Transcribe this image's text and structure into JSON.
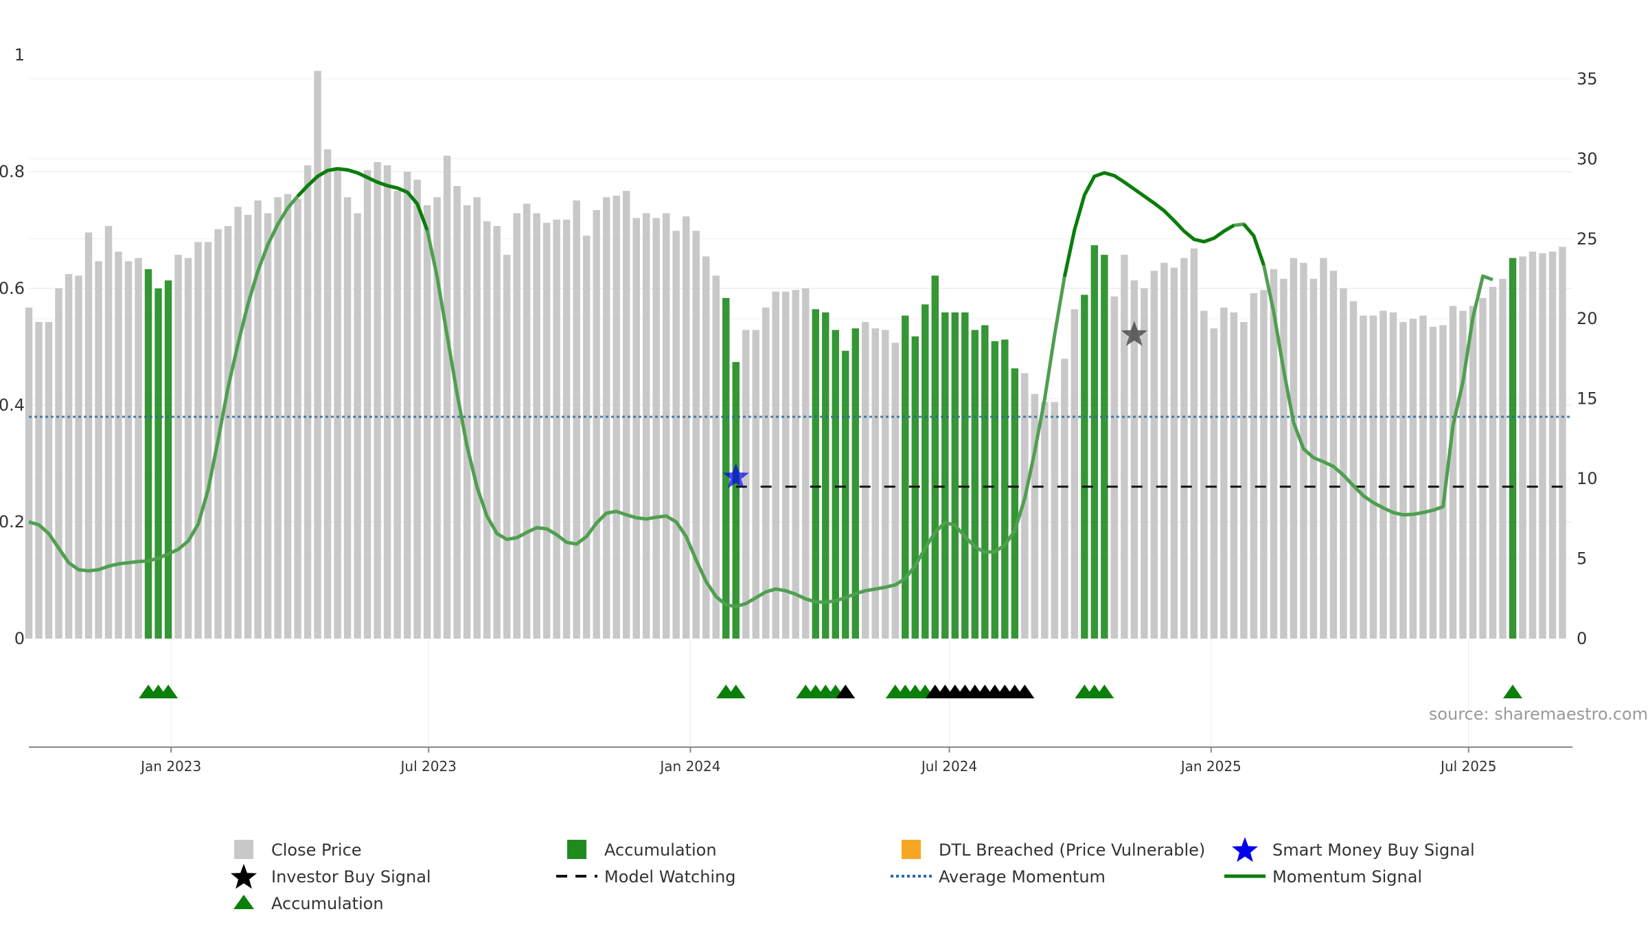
{
  "chart_data": {
    "type": "bar",
    "source": "source: sharemaestro.com",
    "colors": {
      "close_price": "#c8c8c8",
      "accumulation": "#1f8b1f",
      "momentum": "#0a7d0a",
      "average_momentum": "#2a6aa0",
      "model_watching": "#111111",
      "smart_money": "#0000ee",
      "investor_buy": "#444444",
      "dtl_breached": "#f5a623"
    },
    "left_axis": {
      "range": [
        0,
        1
      ],
      "ticks": [
        "0",
        "0.2",
        "0.4",
        "0.6",
        "0.8",
        "1"
      ]
    },
    "right_axis": {
      "range": [
        0,
        36
      ],
      "ticks": [
        "0",
        "5",
        "10",
        "15",
        "20",
        "25",
        "30",
        "35"
      ]
    },
    "x_axis": {
      "range": [
        "2022-09-23",
        "2025-09-12"
      ],
      "ticks": [
        {
          "date": "2023-01-01",
          "label": "Jan 2023"
        },
        {
          "date": "2023-07-01",
          "label": "Jul 2023"
        },
        {
          "date": "2024-01-01",
          "label": "Jan 2024"
        },
        {
          "date": "2024-07-01",
          "label": "Jul 2024"
        },
        {
          "date": "2025-01-01",
          "label": "Jan 2025"
        },
        {
          "date": "2025-07-01",
          "label": "Jul 2025"
        }
      ]
    },
    "legend": {
      "position": "bottom",
      "items": [
        {
          "key": "close_price",
          "label": "Close Price",
          "symbol": "square"
        },
        {
          "key": "accumulation",
          "label": "Accumulation",
          "symbol": "square"
        },
        {
          "key": "dtl_breached",
          "label": "DTL Breached (Price Vulnerable)",
          "symbol": "square"
        },
        {
          "key": "smart_money",
          "label": "Smart Money Buy Signal",
          "symbol": "star"
        },
        {
          "key": "investor_buy",
          "label": "Investor Buy Signal",
          "symbol": "star-black"
        },
        {
          "key": "model_watching",
          "label": "Model Watching",
          "symbol": "dash"
        },
        {
          "key": "average_momentum",
          "label": "Average Momentum",
          "symbol": "dot"
        },
        {
          "key": "momentum",
          "label": "Momentum Signal",
          "symbol": "line"
        },
        {
          "key": "accumulation_marker",
          "label": "Accumulation",
          "symbol": "triangle"
        }
      ]
    },
    "weeks": {
      "start": "2022-09-23",
      "step_days": 7,
      "close": [
        20.7,
        19.8,
        19.8,
        21.9,
        22.8,
        22.7,
        25.4,
        23.6,
        25.8,
        24.2,
        23.6,
        23.8,
        23.1,
        21.9,
        22.4,
        24.0,
        23.8,
        24.8,
        24.8,
        25.6,
        25.8,
        27.0,
        26.5,
        27.4,
        26.6,
        27.6,
        27.8,
        27.5,
        29.6,
        35.5,
        30.6,
        29.5,
        27.6,
        26.6,
        29.3,
        29.8,
        29.6,
        28.0,
        29.2,
        28.7,
        27.1,
        27.6,
        30.2,
        28.3,
        27.1,
        27.6,
        26.1,
        25.8,
        24.0,
        26.6,
        27.2,
        26.6,
        26.0,
        26.2,
        26.2,
        27.4,
        25.2,
        26.8,
        27.6,
        27.7,
        28.0,
        26.3,
        26.6,
        26.3,
        26.6,
        25.5,
        26.4,
        25.5,
        23.9,
        22.7,
        21.3,
        17.3,
        19.3,
        19.3,
        20.7,
        21.7,
        21.7,
        21.8,
        21.9,
        20.6,
        20.4,
        19.3,
        18.0,
        19.4,
        19.8,
        19.4,
        19.3,
        18.5,
        20.2,
        18.9,
        20.9,
        22.7,
        20.4,
        20.4,
        20.4,
        19.3,
        19.6,
        18.6,
        18.7,
        16.9,
        16.6,
        15.3,
        14.8,
        14.8,
        17.5,
        20.6,
        21.5,
        24.6,
        24.0,
        21.4,
        24.0,
        22.4,
        21.9,
        23.0,
        23.5,
        23.2,
        23.8,
        24.4,
        20.5,
        19.4,
        20.7,
        20.4,
        19.8,
        21.6,
        21.8,
        23.1,
        22.5,
        23.8,
        23.5,
        22.5,
        23.8,
        23.0,
        21.9,
        21.1,
        20.2,
        20.2,
        20.5,
        20.4,
        19.8,
        20.0,
        20.2,
        19.5,
        19.6,
        20.8,
        20.5,
        20.8,
        21.3,
        22.0,
        22.5,
        23.8,
        23.9,
        24.2,
        24.1,
        24.2,
        24.5
      ],
      "accumulation": [
        12,
        13,
        14,
        70,
        71,
        79,
        80,
        81,
        82,
        83,
        88,
        89,
        90,
        91,
        92,
        93,
        94,
        95,
        96,
        97,
        98,
        99,
        106,
        107,
        108,
        149
      ],
      "triangles_green": [
        12,
        13,
        14,
        70,
        71,
        78,
        79,
        80,
        81,
        87,
        88,
        89,
        90,
        106,
        107,
        108,
        149
      ],
      "triangles_black": [
        82,
        91,
        92,
        93,
        94,
        95,
        96,
        97,
        98,
        99,
        100
      ],
      "momentum": [
        0.2,
        0.195,
        0.18,
        0.155,
        0.13,
        0.118,
        0.116,
        0.118,
        0.124,
        0.128,
        0.13,
        0.132,
        0.133,
        0.138,
        0.145,
        0.153,
        0.167,
        0.196,
        0.255,
        0.34,
        0.43,
        0.505,
        0.573,
        0.63,
        0.675,
        0.71,
        0.738,
        0.758,
        0.776,
        0.792,
        0.802,
        0.805,
        0.803,
        0.798,
        0.79,
        0.782,
        0.776,
        0.772,
        0.765,
        0.745,
        0.7,
        0.62,
        0.52,
        0.42,
        0.33,
        0.26,
        0.21,
        0.18,
        0.17,
        0.173,
        0.182,
        0.19,
        0.188,
        0.178,
        0.165,
        0.162,
        0.175,
        0.198,
        0.215,
        0.218,
        0.212,
        0.207,
        0.205,
        0.208,
        0.21,
        0.2,
        0.175,
        0.135,
        0.098,
        0.072,
        0.058,
        0.055,
        0.06,
        0.07,
        0.08,
        0.085,
        0.082,
        0.076,
        0.068,
        0.063,
        0.062,
        0.065,
        0.07,
        0.077,
        0.082,
        0.085,
        0.088,
        0.092,
        0.103,
        0.125,
        0.155,
        0.182,
        0.199,
        0.194,
        0.175,
        0.157,
        0.148,
        0.149,
        0.16,
        0.185,
        0.24,
        0.32,
        0.41,
        0.52,
        0.62,
        0.7,
        0.76,
        0.792,
        0.798,
        0.793,
        0.782,
        0.77,
        0.758,
        0.746,
        0.733,
        0.716,
        0.698,
        0.684,
        0.68,
        0.686,
        0.698,
        0.708,
        0.71,
        0.69,
        0.64,
        0.56,
        0.46,
        0.37,
        0.325,
        0.31,
        0.303,
        0.295,
        0.28,
        0.262,
        0.245,
        0.233,
        0.224,
        0.216,
        0.212,
        0.213,
        0.216,
        0.22,
        0.226,
        0.365,
        0.44,
        0.55,
        0.621,
        0.615
      ],
      "momentum_dark": [
        [
          27,
          40
        ],
        [
          104,
          121
        ],
        [
          122,
          124
        ]
      ],
      "smart_money_index": 71,
      "smart_money_value": 10.1,
      "investor_buy_index": 111,
      "investor_buy_value": 19.0,
      "watching_from": 71
    },
    "average_momentum": 0.38,
    "model_watching_value": 9.5
  }
}
